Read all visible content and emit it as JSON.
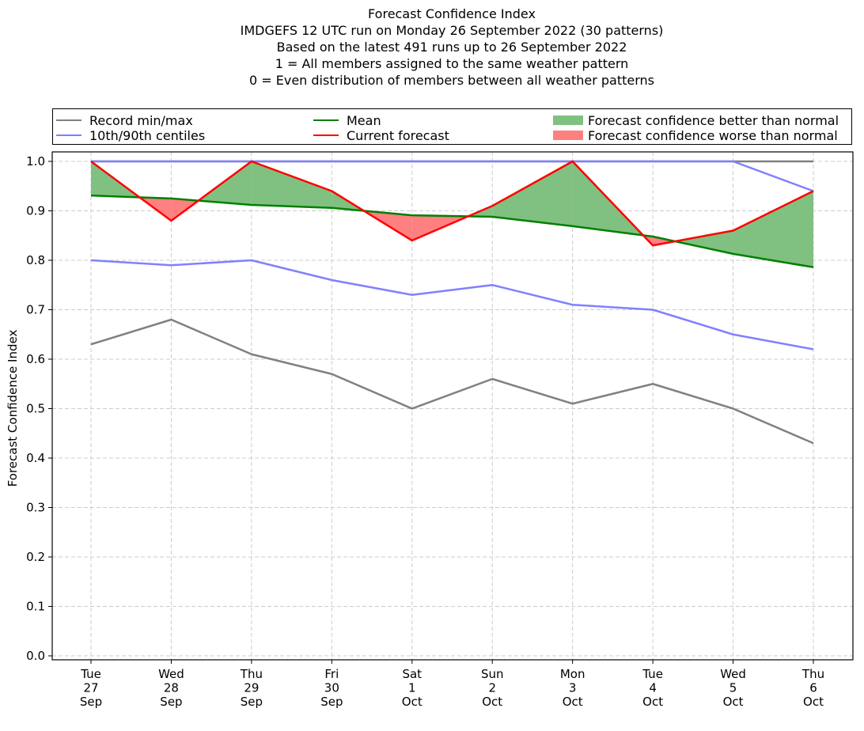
{
  "chart_data": {
    "type": "line",
    "title_lines": [
      "Forecast Confidence Index",
      "IMDGEFS 12 UTC run on Monday 26 September 2022 (30 patterns)",
      "Based on the latest 491 runs up to 26 September 2022",
      "1 = All members assigned to the same weather pattern",
      "0 = Even distribution of members between all weather patterns"
    ],
    "xlabel": "",
    "ylabel": "Forecast Confidence Index",
    "ylim": [
      0.0,
      1.0
    ],
    "yticks": [
      "0.0",
      "0.1",
      "0.2",
      "0.3",
      "0.4",
      "0.5",
      "0.6",
      "0.7",
      "0.8",
      "0.9",
      "1.0"
    ],
    "grid": true,
    "legend_position": "top, above plot (3 columns)",
    "categories": [
      {
        "day": "Tue",
        "date": "27",
        "month": "Sep"
      },
      {
        "day": "Wed",
        "date": "28",
        "month": "Sep"
      },
      {
        "day": "Thu",
        "date": "29",
        "month": "Sep"
      },
      {
        "day": "Fri",
        "date": "30",
        "month": "Sep"
      },
      {
        "day": "Sat",
        "date": "1",
        "month": "Oct"
      },
      {
        "day": "Sun",
        "date": "2",
        "month": "Oct"
      },
      {
        "day": "Mon",
        "date": "3",
        "month": "Oct"
      },
      {
        "day": "Tue",
        "date": "4",
        "month": "Oct"
      },
      {
        "day": "Wed",
        "date": "5",
        "month": "Oct"
      },
      {
        "day": "Thu",
        "date": "6",
        "month": "Oct"
      }
    ],
    "series": [
      {
        "name": "Record max",
        "legend_group": "Record min/max",
        "color": "#808080",
        "values": [
          1.0,
          1.0,
          1.0,
          1.0,
          1.0,
          1.0,
          1.0,
          1.0,
          1.0,
          1.0
        ]
      },
      {
        "name": "Record min",
        "legend_group": "Record min/max",
        "color": "#808080",
        "values": [
          0.63,
          0.68,
          0.61,
          0.57,
          0.5,
          0.56,
          0.51,
          0.55,
          0.5,
          0.43
        ]
      },
      {
        "name": "90th centile",
        "legend_group": "10th/90th centiles",
        "color": "#8080ff",
        "values": [
          1.0,
          1.0,
          1.0,
          1.0,
          1.0,
          1.0,
          1.0,
          1.0,
          1.0,
          0.94
        ]
      },
      {
        "name": "10th centile",
        "legend_group": "10th/90th centiles",
        "color": "#8080ff",
        "values": [
          0.8,
          0.79,
          0.8,
          0.76,
          0.73,
          0.75,
          0.71,
          0.7,
          0.65,
          0.62
        ]
      },
      {
        "name": "Mean",
        "legend_group": "Mean",
        "color": "#008000",
        "values": [
          0.931,
          0.925,
          0.912,
          0.906,
          0.891,
          0.888,
          0.869,
          0.848,
          0.813,
          0.786
        ]
      },
      {
        "name": "Current forecast",
        "legend_group": "Current forecast",
        "color": "#ff0000",
        "values": [
          1.0,
          0.88,
          1.0,
          0.94,
          0.84,
          0.91,
          1.0,
          0.83,
          0.86,
          0.94
        ]
      }
    ],
    "fills": [
      {
        "name": "Forecast confidence better than normal",
        "color": "#80c080",
        "rule": "current >= mean"
      },
      {
        "name": "Forecast confidence worse than normal",
        "color": "#ff8080",
        "rule": "current < mean"
      }
    ]
  },
  "legend": {
    "items": [
      {
        "label": "Record min/max",
        "kind": "line",
        "color": "#808080"
      },
      {
        "label": "10th/90th centiles",
        "kind": "line",
        "color": "#8080ff"
      },
      {
        "label": "Mean",
        "kind": "line",
        "color": "#008000"
      },
      {
        "label": "Current forecast",
        "kind": "line",
        "color": "#ff0000"
      },
      {
        "label": "Forecast confidence better than normal",
        "kind": "patch",
        "color": "#80c080"
      },
      {
        "label": "Forecast confidence worse than normal",
        "kind": "patch",
        "color": "#ff8080"
      }
    ]
  }
}
